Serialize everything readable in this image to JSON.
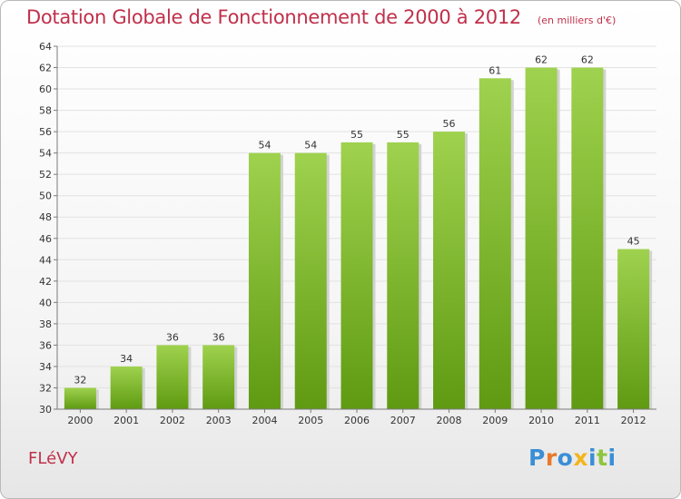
{
  "title": "Dotation Globale de Fonctionnement de 2000 à 2012",
  "unit_note": "(en milliers d'€)",
  "commune": "FLéVY",
  "logo": {
    "text": "Proxiti",
    "letters": [
      {
        "ch": "P",
        "color": "#3a8fd6"
      },
      {
        "ch": "r",
        "color": "#e8792a"
      },
      {
        "ch": "o",
        "color": "#3a8fd6"
      },
      {
        "ch": "x",
        "color": "#f2b51c"
      },
      {
        "ch": "i",
        "color": "#3a8fd6"
      },
      {
        "ch": "t",
        "color": "#8dc63f"
      },
      {
        "ch": "i",
        "color": "#3a8fd6"
      }
    ]
  },
  "colors": {
    "title": "#c0304a",
    "bar_top": "#9fd24e",
    "bar_bottom": "#5f9a12",
    "bar_shadow": "#d2d2d2",
    "grid": "#e2e2e2",
    "axis": "#7a7a7a",
    "text": "#333333"
  },
  "chart_data": {
    "type": "bar",
    "categories": [
      "2000",
      "2001",
      "2002",
      "2003",
      "2004",
      "2005",
      "2006",
      "2007",
      "2008",
      "2009",
      "2010",
      "2011",
      "2012"
    ],
    "values": [
      32,
      34,
      36,
      36,
      54,
      54,
      55,
      55,
      56,
      61,
      62,
      62,
      45
    ],
    "ylim": [
      30,
      64
    ],
    "yticks": [
      30,
      32,
      34,
      36,
      38,
      40,
      42,
      44,
      46,
      48,
      50,
      52,
      54,
      56,
      58,
      60,
      62,
      64
    ],
    "title": "Dotation Globale de Fonctionnement de 2000 à 2012",
    "xlabel": "",
    "ylabel": "",
    "grid": true,
    "data_labels": true
  }
}
